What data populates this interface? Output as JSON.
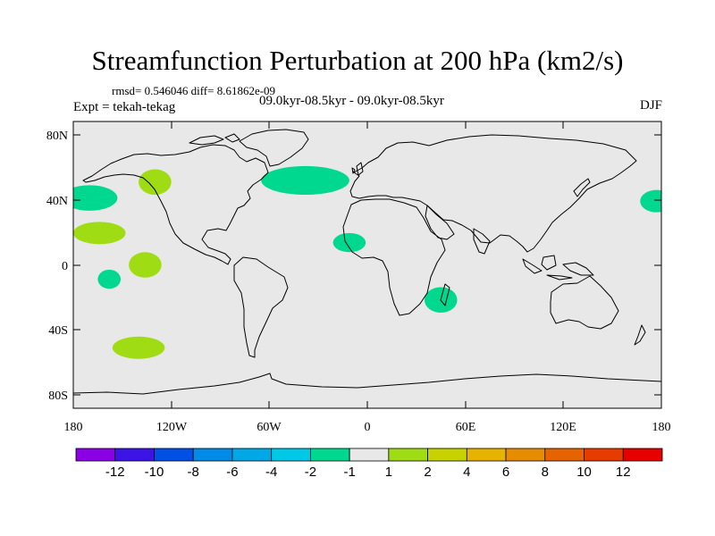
{
  "title": "Streamfunction Perturbation at 200 hPa (km2/s)",
  "stats_text": "rmsd= 0.546046  diff= 8.61862e-09",
  "expt_text": "Expt = tekah-tekag",
  "period_text": "09.0kyr-08.5kyr - 09.0kyr-08.5kyr",
  "season": "DJF",
  "colors": {
    "land_bg": "#e8e8e8",
    "coast": "#000000",
    "neg1": "#00d890",
    "pos1": "#a0dc14"
  },
  "y_ticks": [
    "80N",
    "40N",
    "0",
    "40S",
    "80S"
  ],
  "x_ticks": [
    "180",
    "120W",
    "60W",
    "0",
    "60E",
    "120E",
    "180"
  ],
  "chart_data": {
    "type": "filled-contour-map",
    "variable": "Streamfunction perturbation",
    "level_hPa": 200,
    "units": "km2/s",
    "season": "DJF",
    "lon_range": [
      -180,
      180
    ],
    "lat_range": [
      -90,
      90
    ],
    "colorbar": {
      "boundaries": [
        "-12",
        "-10",
        "-8",
        "-6",
        "-4",
        "-2",
        "-1",
        "1",
        "2",
        "4",
        "6",
        "8",
        "10",
        "12"
      ],
      "colors": [
        "#8c00e6",
        "#3c14e6",
        "#0050e6",
        "#008ce6",
        "#00a8e6",
        "#00c8e6",
        "#00d890",
        "#e8e8e8",
        "#a0dc14",
        "#c8d200",
        "#e6b400",
        "#e68c00",
        "#e66400",
        "#e63c00",
        "#e60000"
      ]
    },
    "anomalies": [
      {
        "sign": "negative",
        "range": "-2 to -1",
        "lon": -170,
        "lat": 42,
        "rlon": 17,
        "rlat": 8
      },
      {
        "sign": "positive",
        "range": "1 to 2",
        "lon": -130,
        "lat": 52,
        "rlon": 10,
        "rlat": 8
      },
      {
        "sign": "negative",
        "range": "-2 to -1",
        "lon": -38,
        "lat": 53,
        "rlon": 27,
        "rlat": 9
      },
      {
        "sign": "positive",
        "range": "1 to 2",
        "lon": -164,
        "lat": 20,
        "rlon": 16,
        "rlat": 7
      },
      {
        "sign": "negative",
        "range": "-2 to -1",
        "lon": -11,
        "lat": 14,
        "rlon": 10,
        "rlat": 6
      },
      {
        "sign": "positive",
        "range": "1 to 2",
        "lon": -136,
        "lat": 0,
        "rlon": 10,
        "rlat": 8
      },
      {
        "sign": "negative",
        "range": "-2 to -1",
        "lon": -158,
        "lat": -9,
        "rlon": 7,
        "rlat": 6
      },
      {
        "sign": "negative",
        "range": "-2 to -1",
        "lon": 45,
        "lat": -22,
        "rlon": 10,
        "rlat": 8
      },
      {
        "sign": "positive",
        "range": "1 to 2",
        "lon": -140,
        "lat": -52,
        "rlon": 16,
        "rlat": 7
      },
      {
        "sign": "negative",
        "range": "-2 to -1",
        "lon": 177,
        "lat": 40,
        "rlon": 10,
        "rlat": 7
      }
    ]
  }
}
